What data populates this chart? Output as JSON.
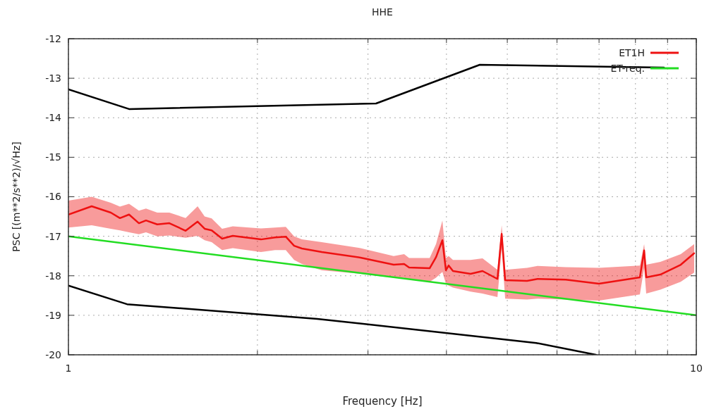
{
  "chart_data": {
    "type": "line",
    "title": "HHE",
    "xlabel": "Frequency [Hz]",
    "ylabel": "PSC [(m**2/s**2)/√Hz]",
    "log": "x",
    "grid": true,
    "legend": "top right",
    "xlim": [
      1,
      10
    ],
    "xticks": [
      1,
      {
        "value": 2,
        "label": null
      },
      {
        "value": 3,
        "label": null
      },
      {
        "value": 4,
        "label": null
      },
      {
        "value": 5,
        "label": null
      },
      {
        "value": 6,
        "label": null
      },
      {
        "value": 7,
        "label": null
      },
      {
        "value": 8,
        "label": null
      },
      {
        "value": 9,
        "label": null
      },
      10
    ],
    "ylim": [
      -20,
      -12
    ],
    "yticks": [
      -20,
      -19,
      -18,
      -17,
      -16,
      -15,
      -14,
      -13,
      -12
    ],
    "series": [
      {
        "name": "ET1H",
        "color": "#ee1111",
        "x": [
          1.0,
          1.089,
          1.168,
          1.208,
          1.249,
          1.295,
          1.329,
          1.385,
          1.448,
          1.537,
          1.606,
          1.648,
          1.691,
          1.757,
          1.827,
          2.026,
          2.134,
          2.219,
          2.288,
          2.354,
          2.532,
          2.919,
          3.296,
          3.425,
          3.488,
          3.761,
          3.85,
          3.941,
          3.992,
          4.033,
          4.097,
          4.37,
          4.566,
          4.823,
          4.898,
          4.961,
          5.375,
          5.587,
          6.196,
          6.997,
          8.131,
          8.259,
          8.322,
          8.764,
          9.447,
          9.922
        ],
        "values": [
          -16.45,
          -16.24,
          -16.4,
          -16.54,
          -16.45,
          -16.67,
          -16.6,
          -16.7,
          -16.67,
          -16.86,
          -16.63,
          -16.81,
          -16.85,
          -17.06,
          -16.99,
          -17.08,
          -17.03,
          -17.01,
          -17.24,
          -17.31,
          -17.4,
          -17.54,
          -17.72,
          -17.7,
          -17.79,
          -17.81,
          -17.53,
          -17.1,
          -17.86,
          -17.74,
          -17.88,
          -17.95,
          -17.88,
          -18.08,
          -16.94,
          -18.11,
          -18.13,
          -18.08,
          -18.1,
          -18.2,
          -18.04,
          -17.36,
          -18.04,
          -17.97,
          -17.72,
          -17.43
        ],
        "upper": [
          -16.1,
          -16.0,
          -16.15,
          -16.25,
          -16.18,
          -16.35,
          -16.3,
          -16.4,
          -16.4,
          -16.54,
          -16.24,
          -16.5,
          -16.55,
          -16.81,
          -16.75,
          -16.8,
          -16.78,
          -16.76,
          -17.0,
          -17.08,
          -17.15,
          -17.3,
          -17.5,
          -17.45,
          -17.55,
          -17.55,
          -17.2,
          -16.6,
          -17.55,
          -17.5,
          -17.6,
          -17.6,
          -17.56,
          -17.85,
          -16.72,
          -17.85,
          -17.8,
          -17.75,
          -17.78,
          -17.8,
          -17.74,
          -17.2,
          -17.72,
          -17.65,
          -17.45,
          -17.2
        ],
        "lower": [
          -16.78,
          -16.72,
          -16.81,
          -16.85,
          -16.9,
          -16.95,
          -16.9,
          -17.0,
          -16.98,
          -17.04,
          -16.99,
          -17.1,
          -17.15,
          -17.35,
          -17.3,
          -17.4,
          -17.35,
          -17.35,
          -17.6,
          -17.7,
          -17.86,
          -17.95,
          -18.05,
          -18.05,
          -18.1,
          -18.15,
          -18.05,
          -17.9,
          -18.2,
          -18.25,
          -18.3,
          -18.4,
          -18.45,
          -18.54,
          -17.3,
          -18.58,
          -18.6,
          -18.58,
          -18.6,
          -18.63,
          -18.47,
          -17.8,
          -18.45,
          -18.35,
          -18.15,
          -17.92
        ]
      },
      {
        "name": "ET-req.",
        "color": "#22dd22",
        "x": [
          1,
          10
        ],
        "values": [
          -17,
          -19
        ]
      },
      {
        "color": "#000000",
        "x": [
          1,
          1.249,
          3.09,
          4.52,
          8.88
        ],
        "values": [
          -13.28,
          -13.78,
          -13.64,
          -12.66,
          -12.73
        ]
      },
      {
        "color": "#000000",
        "x": [
          1,
          1.24,
          2.49,
          5.56,
          6.92
        ],
        "values": [
          -18.25,
          -18.72,
          -19.09,
          -19.7,
          -20
        ]
      }
    ]
  }
}
